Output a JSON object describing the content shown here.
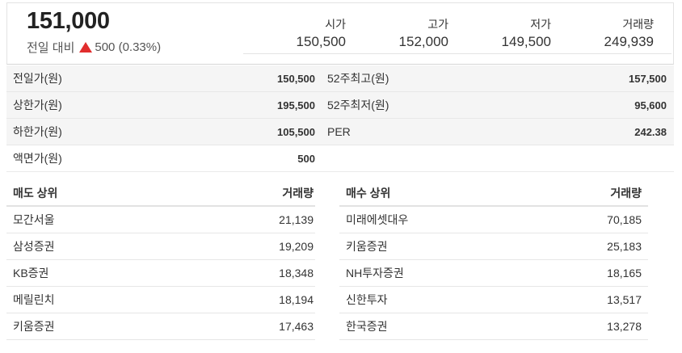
{
  "quote": {
    "price": "151,000",
    "change_label": "전일 대비",
    "change_value": "500 (0.33%)",
    "direction": "up",
    "up_color": "#e12d2d"
  },
  "stats": [
    {
      "label": "시가",
      "value": "150,500"
    },
    {
      "label": "고가",
      "value": "152,000"
    },
    {
      "label": "저가",
      "value": "149,500"
    },
    {
      "label": "거래량",
      "value": "249,939"
    }
  ],
  "info_rows": [
    {
      "left_label": "전일가(원)",
      "left_value": "150,500",
      "right_label": "52주최고(원)",
      "right_value": "157,500"
    },
    {
      "left_label": "상한가(원)",
      "left_value": "195,500",
      "right_label": "52주최저(원)",
      "right_value": "95,600"
    },
    {
      "left_label": "하한가(원)",
      "left_value": "105,500",
      "right_label": "PER",
      "right_value": "242.38"
    },
    {
      "left_label": "액면가(원)",
      "left_value": "500",
      "right_label": "",
      "right_value": ""
    }
  ],
  "sell_top": {
    "header": {
      "name": "매도 상위",
      "volume": "거래량"
    },
    "rows": [
      {
        "name": "모간서울",
        "volume": "21,139"
      },
      {
        "name": "삼성증권",
        "volume": "19,209"
      },
      {
        "name": "KB증권",
        "volume": "18,348"
      },
      {
        "name": "메릴린치",
        "volume": "18,194"
      },
      {
        "name": "키움증권",
        "volume": "17,463"
      }
    ]
  },
  "buy_top": {
    "header": {
      "name": "매수 상위",
      "volume": "거래량"
    },
    "rows": [
      {
        "name": "미래에셋대우",
        "volume": "70,185"
      },
      {
        "name": "키움증권",
        "volume": "25,183"
      },
      {
        "name": "NH투자증권",
        "volume": "18,165"
      },
      {
        "name": "신한투자",
        "volume": "13,517"
      },
      {
        "name": "한국증권",
        "volume": "13,278"
      }
    ]
  }
}
